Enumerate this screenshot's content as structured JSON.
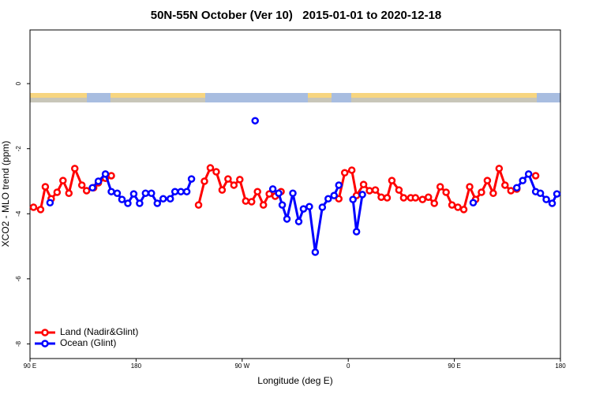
{
  "chart_data": {
    "type": "line",
    "title": "50N-55N October (Ver 10)   2015-01-01 to 2020-12-18",
    "xlabel": "Longitude (deg E)",
    "ylabel": "XCO2 - MLO trend (ppm)",
    "xlim": [
      90,
      540
    ],
    "ylim": [
      -8.45,
      1.65
    ],
    "xticks": [
      {
        "value": 90,
        "label": "90 E"
      },
      180,
      {
        "value": 270,
        "label": "90 W"
      },
      {
        "value": 360,
        "label": "0"
      },
      {
        "value": 450,
        "label": "90 E"
      },
      {
        "value": 540,
        "label": "180"
      }
    ],
    "yticks": [
      0,
      -2,
      -4,
      -6,
      -8
    ],
    "legend": "bottom-left",
    "series": [
      {
        "name": "Land (Nadir&Glint)",
        "color": "#ff0000",
        "x": [
          93,
          99,
          103,
          108,
          113,
          118,
          123,
          128,
          134,
          138,
          144,
          148,
          154,
          159,
          null,
          233,
          238,
          243,
          248,
          253,
          258,
          263,
          268,
          273,
          278,
          283,
          288,
          293,
          298,
          303,
          null,
          352,
          357,
          363,
          367,
          373,
          378,
          383,
          388,
          393,
          397,
          403,
          407,
          413,
          417,
          423,
          428,
          433,
          438,
          443,
          448,
          453,
          458,
          463,
          468,
          473,
          478,
          483,
          488,
          493,
          498,
          503,
          null,
          519
        ],
        "values": [
          -3.8,
          -3.87,
          -3.17,
          -3.54,
          -3.34,
          -2.98,
          -3.37,
          -2.61,
          -3.12,
          -3.29,
          -3.2,
          -3.05,
          -2.91,
          -2.83,
          null,
          -3.73,
          -3.0,
          -2.59,
          -2.71,
          -3.27,
          -2.93,
          -3.12,
          -2.95,
          -3.61,
          -3.63,
          -3.32,
          -3.73,
          -3.39,
          -3.46,
          -3.32,
          null,
          -3.54,
          -2.74,
          -2.66,
          -3.44,
          -3.1,
          -3.29,
          -3.27,
          -3.49,
          -3.51,
          -2.98,
          -3.27,
          -3.51,
          -3.51,
          -3.51,
          -3.56,
          -3.49,
          -3.68,
          -3.17,
          -3.34,
          -3.73,
          -3.8,
          -3.87,
          -3.17,
          -3.56,
          -3.34,
          -2.98,
          -3.37,
          -2.61,
          -3.12,
          -3.29,
          -3.24,
          null,
          -2.83
        ]
      },
      {
        "name": "Ocean (Glint)",
        "color": "#0000ff",
        "x": [
          107,
          null,
          143,
          148,
          154,
          159,
          164,
          168,
          173,
          178,
          183,
          188,
          193,
          198,
          203,
          209,
          213,
          218,
          223,
          227,
          null,
          281,
          null,
          296,
          301,
          304,
          308,
          313,
          318,
          322,
          327,
          332,
          338,
          343,
          348,
          352,
          null,
          364,
          367,
          372,
          null,
          466,
          null,
          503,
          508,
          513,
          519,
          523,
          528,
          533,
          537
        ],
        "values": [
          -3.66,
          null,
          -3.2,
          -3.0,
          -2.78,
          -3.32,
          -3.37,
          -3.56,
          -3.68,
          -3.39,
          -3.68,
          -3.37,
          -3.37,
          -3.68,
          -3.54,
          -3.54,
          -3.32,
          -3.32,
          -3.32,
          -2.93,
          null,
          -1.14,
          null,
          -3.24,
          -3.37,
          -3.73,
          -4.16,
          -3.37,
          -4.24,
          -3.85,
          -3.78,
          -5.18,
          -3.8,
          -3.54,
          -3.44,
          -3.12,
          null,
          -3.56,
          -4.55,
          -3.41,
          null,
          -3.66,
          null,
          -3.2,
          -2.98,
          -2.78,
          -3.32,
          -3.37,
          -3.56,
          -3.68,
          -3.39
        ]
      }
    ]
  }
}
